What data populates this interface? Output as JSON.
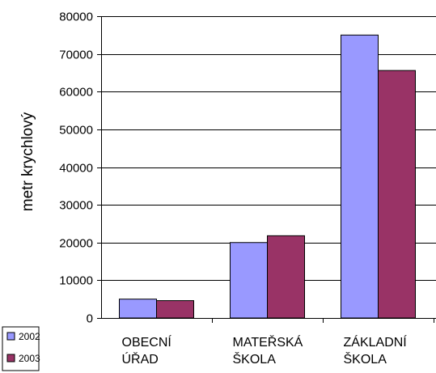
{
  "chart_data": {
    "type": "bar",
    "categories": [
      [
        "OBECNÍ",
        "ÚŘAD"
      ],
      [
        "MATEŘSKÁ",
        "ŠKOLA"
      ],
      [
        "ZÁKLADNÍ",
        "ŠKOLA"
      ]
    ],
    "series": [
      {
        "name": "2002",
        "color": "#9999ff",
        "values": [
          5000,
          20000,
          75000
        ]
      },
      {
        "name": "2003",
        "color": "#993366",
        "values": [
          4600,
          21800,
          65600
        ]
      }
    ],
    "title": "",
    "xlabel": "",
    "ylabel": "metr krychlový",
    "ylim": [
      0,
      80000
    ],
    "yticks": [
      0,
      10000,
      20000,
      30000,
      40000,
      50000,
      60000,
      70000,
      80000
    ],
    "grid": true,
    "legend_position": "bottom-left"
  }
}
